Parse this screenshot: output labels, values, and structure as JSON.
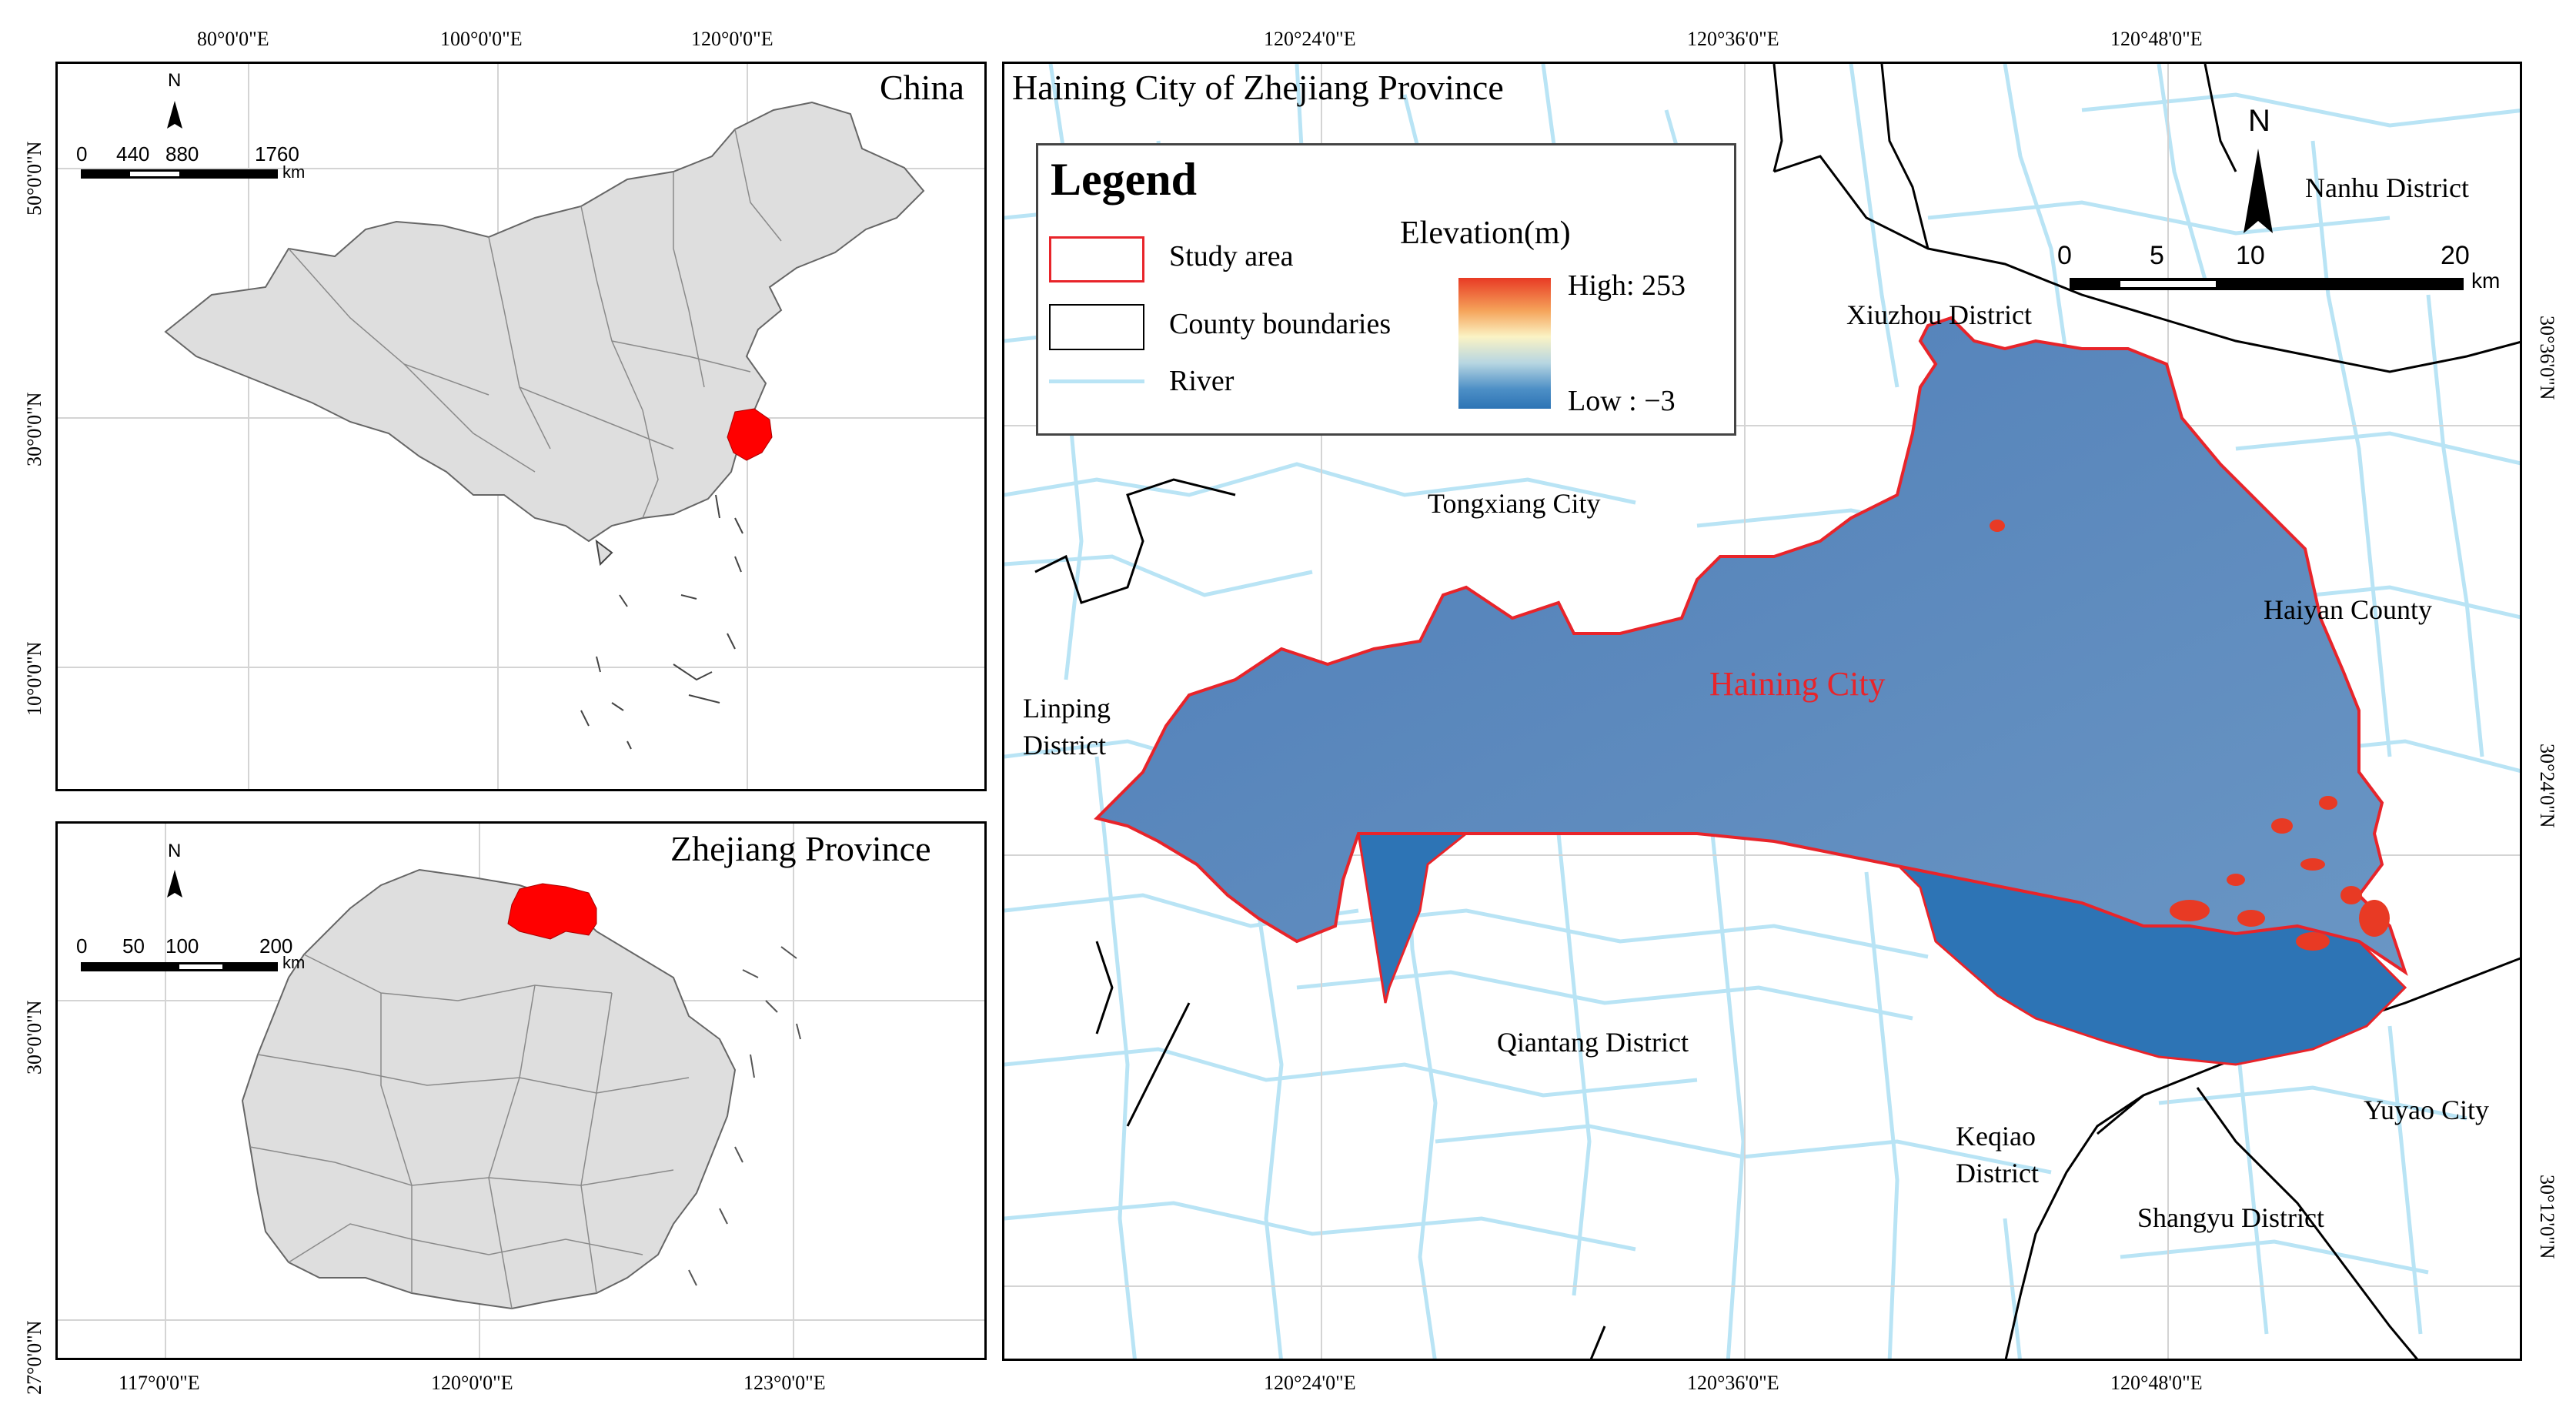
{
  "china_panel": {
    "title": "China",
    "top_lon": [
      "80°0'0\"E",
      "100°0'0\"E",
      "120°0'0\"E"
    ],
    "left_lat": [
      "50°0'0\"N",
      "30°0'0\"N",
      "10°0'0\"N"
    ],
    "scale": {
      "ticks": [
        "0",
        "440",
        "880",
        "1760"
      ],
      "unit": "km"
    },
    "north": "N"
  },
  "zhejiang_panel": {
    "title": "Zhejiang Province",
    "bottom_lon": [
      "117°0'0\"E",
      "120°0'0\"E",
      "123°0'0\"E"
    ],
    "left_lat": [
      "30°0'0\"N",
      "27°0'0\"N"
    ],
    "scale": {
      "ticks": [
        "0",
        "50",
        "100",
        "200"
      ],
      "unit": "km"
    },
    "north": "N"
  },
  "main_panel": {
    "title": "Haining City of Zhejiang Province",
    "top_lon": [
      "120°24'0\"E",
      "120°36'0\"E",
      "120°48'0\"E"
    ],
    "bottom_lon": [
      "120°24'0\"E",
      "120°36'0\"E",
      "120°48'0\"E"
    ],
    "right_lat": [
      "30°36'0\"N",
      "30°24'0\"N",
      "30°12'0\"N"
    ],
    "scale": {
      "ticks": [
        "0",
        "5",
        "10",
        "20"
      ],
      "unit": "km"
    },
    "north": "N",
    "places": {
      "nanhu": "Nanhu District",
      "xiuzhou": "Xiuzhou District",
      "tongxiang": "Tongxiang City",
      "haiyan": "Haiyan County",
      "haining": "Haining City",
      "linping_1": "Linping",
      "linping_2": "District",
      "qiantang": "Qiantang District",
      "keqiao_1": "Keqiao",
      "keqiao_2": "District",
      "yuyao": "Yuyao City",
      "shangyu": "Shangyu District"
    }
  },
  "legend": {
    "title": "Legend",
    "study_area": "Study area",
    "county_boundaries": "County boundaries",
    "river": "River",
    "elevation_title": "Elevation(m)",
    "high": "High: 253",
    "low": "Low : −3"
  },
  "colors": {
    "study_area_outline": "#e8242a",
    "highlight": "#ff0000",
    "river": "#b9e4f5",
    "land_fill": "#dedede",
    "dem_low": "#2d74b5",
    "dem_high": "#e83a24",
    "haining_label": "#e8242a"
  }
}
